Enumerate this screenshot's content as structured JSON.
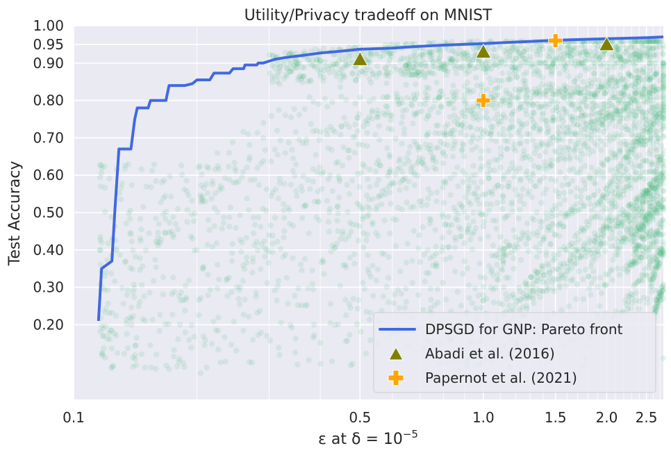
{
  "chart_data": {
    "type": "scatter",
    "title": "Utility/Privacy tradeoff on MNIST",
    "xlabel": "ε at δ = 10⁻⁵",
    "xlabel_main": "ε at δ = 10",
    "xlabel_exp": "−5",
    "ylabel": "Test Accuracy",
    "xscale": "log",
    "xlim": [
      0.1,
      2.75
    ],
    "ylim": [
      0.0,
      1.0
    ],
    "x_ticks": [
      {
        "value": 0.1,
        "label": "0.1"
      },
      {
        "value": 0.5,
        "label": "0.5"
      },
      {
        "value": 1.0,
        "label": "1.0"
      },
      {
        "value": 1.5,
        "label": "1.5"
      },
      {
        "value": 2.0,
        "label": "2.0"
      },
      {
        "value": 2.5,
        "label": "2.5"
      }
    ],
    "y_ticks": [
      {
        "value": 0.2,
        "label": "0.20"
      },
      {
        "value": 0.3,
        "label": "0.30"
      },
      {
        "value": 0.4,
        "label": "0.40"
      },
      {
        "value": 0.5,
        "label": "0.50"
      },
      {
        "value": 0.6,
        "label": "0.60"
      },
      {
        "value": 0.7,
        "label": "0.70"
      },
      {
        "value": 0.8,
        "label": "0.80"
      },
      {
        "value": 0.9,
        "label": "0.90"
      },
      {
        "value": 0.95,
        "label": "0.95"
      },
      {
        "value": 1.0,
        "label": "1.00"
      }
    ],
    "legend_position": "bottom-right",
    "series": [
      {
        "name": "DPSGD for GNP: Pareto front",
        "kind": "line",
        "color": "#4169e1",
        "points": [
          [
            0.115,
            0.21
          ],
          [
            0.117,
            0.35
          ],
          [
            0.124,
            0.37
          ],
          [
            0.126,
            0.5
          ],
          [
            0.129,
            0.67
          ],
          [
            0.138,
            0.67
          ],
          [
            0.141,
            0.75
          ],
          [
            0.143,
            0.78
          ],
          [
            0.152,
            0.78
          ],
          [
            0.154,
            0.8
          ],
          [
            0.168,
            0.8
          ],
          [
            0.171,
            0.84
          ],
          [
            0.187,
            0.84
          ],
          [
            0.195,
            0.845
          ],
          [
            0.2,
            0.855
          ],
          [
            0.215,
            0.855
          ],
          [
            0.22,
            0.873
          ],
          [
            0.24,
            0.873
          ],
          [
            0.245,
            0.885
          ],
          [
            0.26,
            0.885
          ],
          [
            0.262,
            0.895
          ],
          [
            0.28,
            0.895
          ],
          [
            0.282,
            0.9
          ],
          [
            0.29,
            0.9
          ],
          [
            0.31,
            0.91
          ],
          [
            0.33,
            0.915
          ],
          [
            0.36,
            0.92
          ],
          [
            0.4,
            0.927
          ],
          [
            0.45,
            0.932
          ],
          [
            0.5,
            0.937
          ],
          [
            0.6,
            0.94
          ],
          [
            0.7,
            0.945
          ],
          [
            0.8,
            0.948
          ],
          [
            1.0,
            0.952
          ],
          [
            1.3,
            0.958
          ],
          [
            1.6,
            0.962
          ],
          [
            2.0,
            0.965
          ],
          [
            2.5,
            0.968
          ],
          [
            2.75,
            0.97
          ]
        ]
      },
      {
        "name": "Abadi et al. (2016)",
        "kind": "marker",
        "marker": "triangle",
        "color": "#808000",
        "points": [
          [
            0.5,
            0.91
          ],
          [
            1.0,
            0.93
          ],
          [
            2.0,
            0.95
          ]
        ]
      },
      {
        "name": "Papernot et al. (2021)",
        "kind": "marker",
        "marker": "plus",
        "color": "#ffa500",
        "points": [
          [
            1.0,
            0.8
          ],
          [
            1.5,
            0.96
          ]
        ]
      }
    ],
    "hyperparameter_runs": {
      "name": "hyperparameter runs",
      "color": "#3cb371",
      "opacity": 0.12
    }
  }
}
